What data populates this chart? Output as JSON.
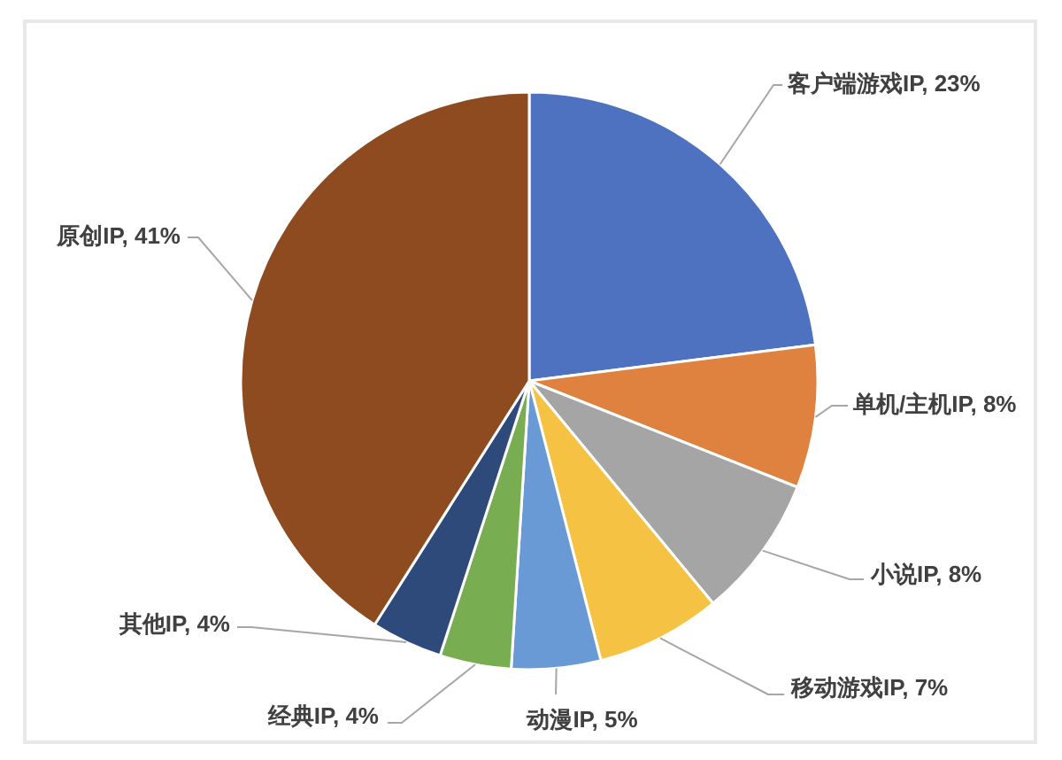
{
  "chart_data": {
    "type": "pie",
    "categories": [
      "客户端游戏IP",
      "单机/主机IP",
      "小说IP",
      "移动游戏IP",
      "动漫IP",
      "经典IP",
      "其他IP",
      "原创IP"
    ],
    "values": [
      23,
      8,
      8,
      7,
      5,
      4,
      4,
      41
    ],
    "colors": [
      "#4f72c0",
      "#e0823f",
      "#a5a5a5",
      "#f6c243",
      "#6a9ad6",
      "#78ad52",
      "#2e4a7a",
      "#8e4b20"
    ],
    "value_labels": [
      "23%",
      "8%",
      "8%",
      "7%",
      "5%",
      "4%",
      "4%",
      "41%"
    ]
  }
}
